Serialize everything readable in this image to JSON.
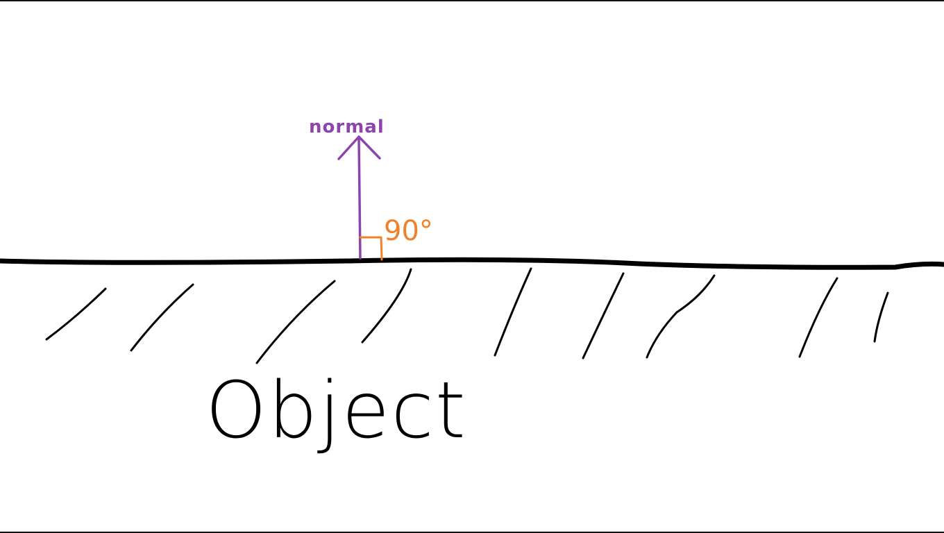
{
  "diagram": {
    "normal_label": "normal",
    "angle_label": "90°",
    "object_label": "Object",
    "colors": {
      "normal": "#8e44ad",
      "angle": "#f0812a",
      "surface": "#000000",
      "background": "#ffffff"
    }
  }
}
